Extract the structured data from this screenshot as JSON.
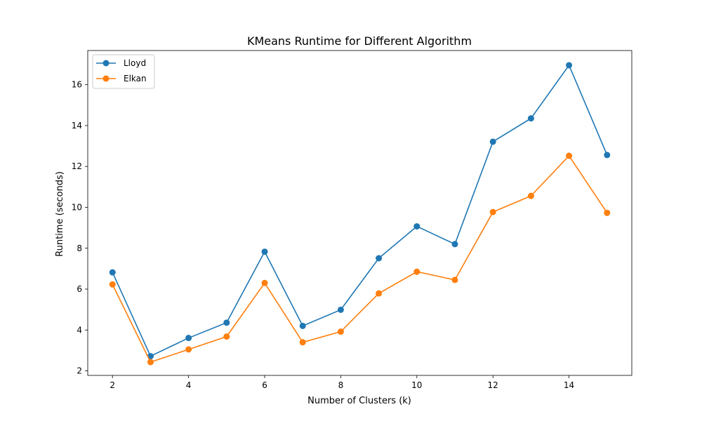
{
  "chart_data": {
    "type": "line",
    "title": "KMeans Runtime for Different Algorithm",
    "xlabel": "Number of Clusters (k)",
    "ylabel": "Runtime (seconds)",
    "x": [
      2,
      3,
      4,
      5,
      6,
      7,
      8,
      9,
      10,
      11,
      12,
      13,
      14,
      15
    ],
    "series": [
      {
        "name": "Lloyd",
        "color": "#1f77b4",
        "values": [
          6.82,
          2.72,
          3.61,
          4.36,
          7.83,
          4.2,
          4.99,
          7.51,
          9.07,
          8.2,
          13.21,
          14.35,
          16.95,
          12.56
        ]
      },
      {
        "name": "Elkan",
        "color": "#ff7f0e",
        "values": [
          6.23,
          2.43,
          3.05,
          3.68,
          6.3,
          3.4,
          3.92,
          5.79,
          6.85,
          6.45,
          9.77,
          10.56,
          12.52,
          9.73
        ]
      }
    ],
    "xlim": [
      1.35,
      15.65
    ],
    "ylim": [
      1.78,
      17.67
    ],
    "xticks": [
      2,
      4,
      6,
      8,
      10,
      12,
      14
    ],
    "yticks": [
      2,
      4,
      6,
      8,
      10,
      12,
      14,
      16
    ],
    "grid": false,
    "legend": "upper-left"
  }
}
